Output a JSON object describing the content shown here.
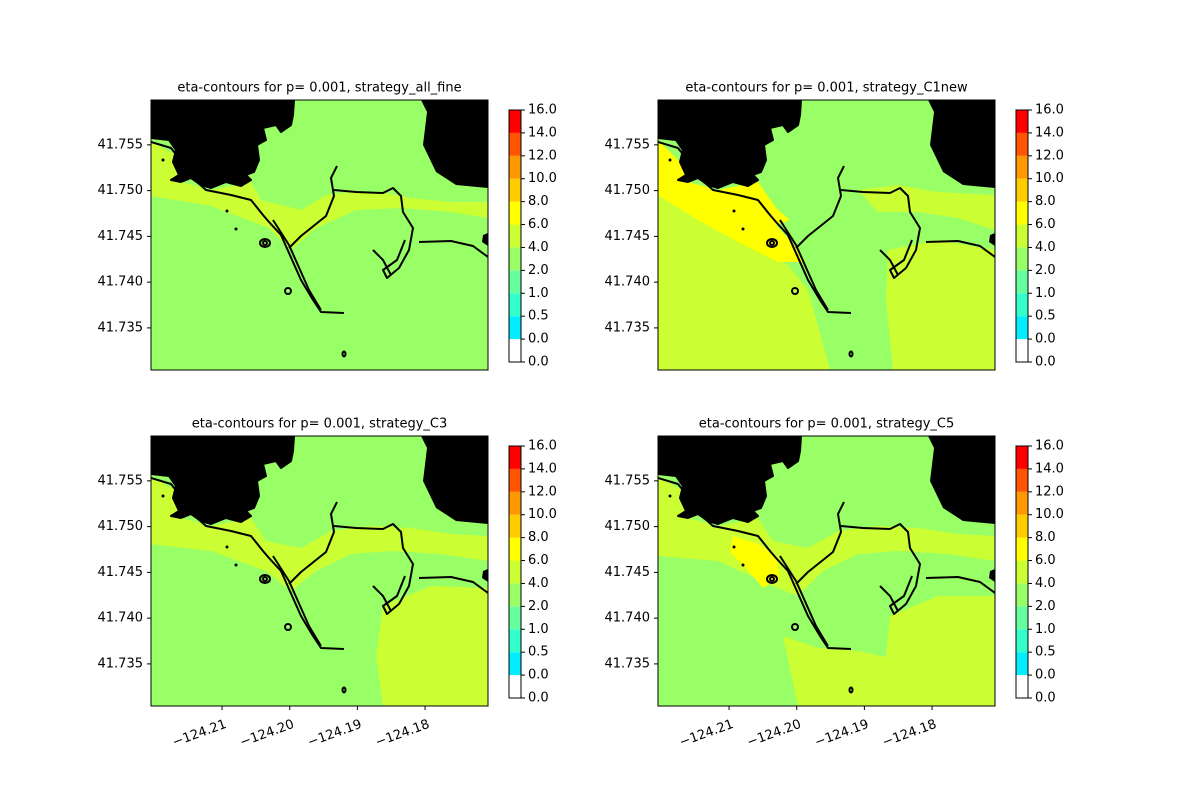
{
  "chart_data": [
    {
      "type": "contour",
      "title": "eta-contours for p= 0.001, strategy_all_fine",
      "xlim": [
        -124.2205,
        -124.1707
      ],
      "ylim": [
        41.7304,
        41.7599
      ],
      "yticks": [
        41.735,
        {
          "value": 41.74,
          "label": "41.740"
        },
        41.745,
        {
          "value": 41.75,
          "label": "41.750"
        },
        41.755
      ],
      "colorbar": {
        "levels": [
          {
            "value": 0,
            "label": "0.0"
          },
          {
            "value": 0,
            "label": "0.0"
          },
          0.5,
          {
            "value": 1,
            "label": "1.0"
          },
          {
            "value": 2,
            "label": "2.0"
          },
          {
            "value": 4,
            "label": "4.0"
          },
          {
            "value": 6,
            "label": "6.0"
          },
          {
            "value": 8,
            "label": "8.0"
          },
          {
            "value": 10,
            "label": "10.0"
          },
          {
            "value": 12,
            "label": "12.0"
          },
          {
            "value": 14,
            "label": "14.0"
          },
          {
            "value": 16,
            "label": "16.0"
          }
        ],
        "colors": [
          "#ffffff",
          "#00eeff",
          "#33ffcc",
          "#66ffa0",
          "#99ff66",
          "#ccff33",
          "#ffff00",
          "#ffcc00",
          "#ff9900",
          "#ff5500",
          "#ff0000"
        ]
      }
    },
    {
      "type": "contour",
      "title": "eta-contours for p= 0.001, strategy_C1new",
      "xlim": [
        -124.2205,
        -124.1707
      ],
      "ylim": [
        41.7304,
        41.7599
      ],
      "yticks": [
        41.735,
        {
          "value": 41.74,
          "label": "41.740"
        },
        41.745,
        {
          "value": 41.75,
          "label": "41.750"
        },
        41.755
      ],
      "colorbar": {
        "levels": [
          {
            "value": 0,
            "label": "0.0"
          },
          {
            "value": 0,
            "label": "0.0"
          },
          0.5,
          {
            "value": 1,
            "label": "1.0"
          },
          {
            "value": 2,
            "label": "2.0"
          },
          {
            "value": 4,
            "label": "4.0"
          },
          {
            "value": 6,
            "label": "6.0"
          },
          {
            "value": 8,
            "label": "8.0"
          },
          {
            "value": 10,
            "label": "10.0"
          },
          {
            "value": 12,
            "label": "12.0"
          },
          {
            "value": 14,
            "label": "14.0"
          },
          {
            "value": 16,
            "label": "16.0"
          }
        ],
        "colors": [
          "#ffffff",
          "#00eeff",
          "#33ffcc",
          "#66ffa0",
          "#99ff66",
          "#ccff33",
          "#ffff00",
          "#ffcc00",
          "#ff9900",
          "#ff5500",
          "#ff0000"
        ]
      }
    },
    {
      "type": "contour",
      "title": "eta-contours for p= 0.001, strategy_C3",
      "xlim": [
        -124.2205,
        -124.1707
      ],
      "ylim": [
        41.7304,
        41.7599
      ],
      "yticks": [
        41.735,
        {
          "value": 41.74,
          "label": "41.740"
        },
        41.745,
        {
          "value": 41.75,
          "label": "41.750"
        },
        41.755
      ],
      "xticks": [
        {
          "value": -124.21,
          "label": "−124.21"
        },
        {
          "value": -124.2,
          "label": "−124.20"
        },
        {
          "value": -124.19,
          "label": "−124.19"
        },
        {
          "value": -124.18,
          "label": "−124.18"
        }
      ],
      "colorbar": {
        "levels": [
          {
            "value": 0,
            "label": "0.0"
          },
          {
            "value": 0,
            "label": "0.0"
          },
          0.5,
          {
            "value": 1,
            "label": "1.0"
          },
          {
            "value": 2,
            "label": "2.0"
          },
          {
            "value": 4,
            "label": "4.0"
          },
          {
            "value": 6,
            "label": "6.0"
          },
          {
            "value": 8,
            "label": "8.0"
          },
          {
            "value": 10,
            "label": "10.0"
          },
          {
            "value": 12,
            "label": "12.0"
          },
          {
            "value": 14,
            "label": "14.0"
          },
          {
            "value": 16,
            "label": "16.0"
          }
        ],
        "colors": [
          "#ffffff",
          "#00eeff",
          "#33ffcc",
          "#66ffa0",
          "#99ff66",
          "#ccff33",
          "#ffff00",
          "#ffcc00",
          "#ff9900",
          "#ff5500",
          "#ff0000"
        ]
      }
    },
    {
      "type": "contour",
      "title": "eta-contours for p= 0.001, strategy_C5",
      "xlim": [
        -124.2205,
        -124.1707
      ],
      "ylim": [
        41.7304,
        41.7599
      ],
      "yticks": [
        41.735,
        {
          "value": 41.74,
          "label": "41.740"
        },
        41.745,
        {
          "value": 41.75,
          "label": "41.750"
        },
        41.755
      ],
      "xticks": [
        {
          "value": -124.21,
          "label": "−124.21"
        },
        {
          "value": -124.2,
          "label": "−124.20"
        },
        {
          "value": -124.19,
          "label": "−124.19"
        },
        {
          "value": -124.18,
          "label": "−124.18"
        }
      ],
      "colorbar": {
        "levels": [
          {
            "value": 0,
            "label": "0.0"
          },
          {
            "value": 0,
            "label": "0.0"
          },
          0.5,
          {
            "value": 1,
            "label": "1.0"
          },
          {
            "value": 2,
            "label": "2.0"
          },
          {
            "value": 4,
            "label": "4.0"
          },
          {
            "value": 6,
            "label": "6.0"
          },
          {
            "value": 8,
            "label": "8.0"
          },
          {
            "value": 10,
            "label": "10.0"
          },
          {
            "value": 12,
            "label": "12.0"
          },
          {
            "value": 14,
            "label": "14.0"
          },
          {
            "value": 16,
            "label": "16.0"
          }
        ],
        "colors": [
          "#ffffff",
          "#00eeff",
          "#33ffcc",
          "#66ffa0",
          "#99ff66",
          "#ccff33",
          "#ffff00",
          "#ffcc00",
          "#ff9900",
          "#ff5500",
          "#ff0000"
        ]
      }
    }
  ]
}
